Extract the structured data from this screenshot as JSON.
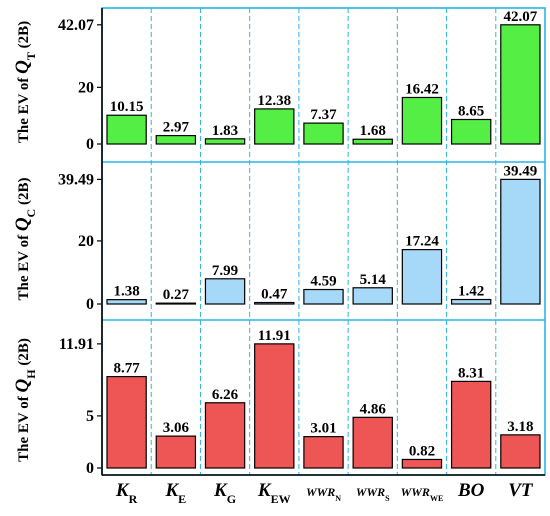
{
  "chart_data": {
    "type": "bar",
    "categories": [
      {
        "base": "K",
        "sub": "R"
      },
      {
        "base": "K",
        "sub": "E"
      },
      {
        "base": "K",
        "sub": "G"
      },
      {
        "base": "K",
        "sub": "EW"
      },
      {
        "base": "WWR",
        "sub": "N"
      },
      {
        "base": "WWR",
        "sub": "S"
      },
      {
        "base": "WWR",
        "sub": "WE"
      },
      {
        "base": "BO",
        "sub": ""
      },
      {
        "base": "VT",
        "sub": ""
      }
    ],
    "panels": [
      {
        "ylabel": {
          "prefix": "The EV of ",
          "q": "Q",
          "sub": "T",
          "suffix": " (2B)"
        },
        "ylim": [
          0,
          48
        ],
        "yticks": [
          "0",
          "20",
          "42.07"
        ],
        "ytick_values": [
          0,
          20,
          42.07
        ],
        "values": [
          10.15,
          2.97,
          1.83,
          12.38,
          7.37,
          1.68,
          16.42,
          8.65,
          42.07
        ],
        "labels": [
          "10.15",
          "2.97",
          "1.83",
          "12.38",
          "7.37",
          "1.68",
          "16.42",
          "8.65",
          "42.07"
        ],
        "color": "#55EE44"
      },
      {
        "ylabel": {
          "prefix": "The EV of ",
          "q": "Q",
          "sub": "C",
          "suffix": " (2B)"
        },
        "ylim": [
          0,
          45
        ],
        "yticks": [
          "0",
          "20",
          "39.49"
        ],
        "ytick_values": [
          0,
          20,
          39.49
        ],
        "values": [
          1.38,
          0.27,
          7.99,
          0.47,
          4.59,
          5.14,
          17.24,
          1.42,
          39.49
        ],
        "labels": [
          "1.38",
          "0.27",
          "7.99",
          "0.47",
          "4.59",
          "5.14",
          "17.24",
          "1.42",
          "39.49"
        ],
        "color": "#A6D8F7"
      },
      {
        "ylabel": {
          "prefix": "The EV of ",
          "q": "Q",
          "sub": "H",
          "suffix": " (2B)"
        },
        "ylim": [
          0,
          14.2
        ],
        "yticks": [
          "0",
          "5",
          "11.91"
        ],
        "ytick_values": [
          0,
          5,
          11.91
        ],
        "values": [
          8.77,
          3.06,
          6.26,
          11.91,
          3.01,
          4.86,
          0.82,
          8.31,
          3.18
        ],
        "labels": [
          "8.77",
          "3.06",
          "6.26",
          "11.91",
          "3.01",
          "4.86",
          "0.82",
          "8.31",
          "3.18"
        ],
        "color": "#EE5555"
      }
    ],
    "grid": "vertical-dashed",
    "grid_color": "#29B6E8",
    "bar_edge": "#000000"
  }
}
